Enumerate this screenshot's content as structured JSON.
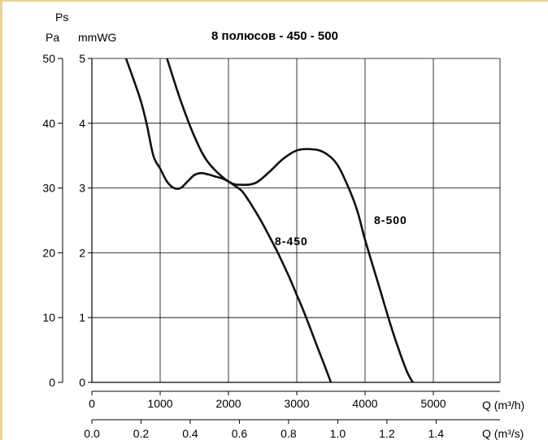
{
  "chart_data": {
    "type": "line",
    "title": "8 полюсов - 450 - 500",
    "ylabel_top": "Ps",
    "ylabel_pa": "Pa",
    "ylabel_mmwg": "mmWG",
    "xlabel_m3h": "Q  (m³/h)",
    "xlabel_m3s": "Q  (m³/s)",
    "xlim_m3h": [
      0,
      6500
    ],
    "ylim_pa": [
      0,
      50
    ],
    "x_ticks_m3h": [
      "0",
      "1000",
      "2000",
      "3000",
      "4000",
      "5000"
    ],
    "x_ticks_m3s": [
      "0.0",
      "0.2",
      "0.4",
      "0.6",
      "0.8",
      "1.0",
      "1.2",
      "1.4"
    ],
    "y_ticks_pa": [
      "0",
      "10",
      "20",
      "30",
      "40",
      "50"
    ],
    "y_ticks_mmwg": [
      "0",
      "1",
      "2",
      "3",
      "4",
      "5"
    ],
    "grid": true,
    "series": [
      {
        "name": "8-450",
        "x": [
          500,
          700,
          800,
          900,
          1000,
          1100,
          1200,
          1300,
          1400,
          1500,
          1600,
          1700,
          1800,
          1900,
          2000,
          2100,
          2200,
          2300,
          2400,
          2500,
          2600,
          2700,
          2800,
          2900,
          3000,
          3100,
          3200,
          3300,
          3400,
          3500
        ],
        "y": [
          50,
          44,
          40,
          35,
          33,
          31,
          30,
          30,
          31,
          32,
          32.3,
          32.1,
          31.8,
          31.5,
          31,
          30.3,
          29.5,
          28,
          26.3,
          24.5,
          22.5,
          20.5,
          18.3,
          16,
          13.5,
          11,
          8.3,
          5.5,
          2.8,
          0
        ]
      },
      {
        "name": "8-500",
        "x": [
          1100,
          1300,
          1500,
          1700,
          2000,
          2200,
          2400,
          2600,
          2800,
          3000,
          3200,
          3400,
          3600,
          3800,
          3900,
          4000,
          4200,
          4400,
          4600,
          4700
        ],
        "y": [
          50,
          43.5,
          38,
          34,
          31,
          30.5,
          30.8,
          32.5,
          34.5,
          35.8,
          36,
          35.5,
          33.5,
          29,
          26,
          22,
          15,
          8,
          2,
          0
        ]
      }
    ]
  }
}
